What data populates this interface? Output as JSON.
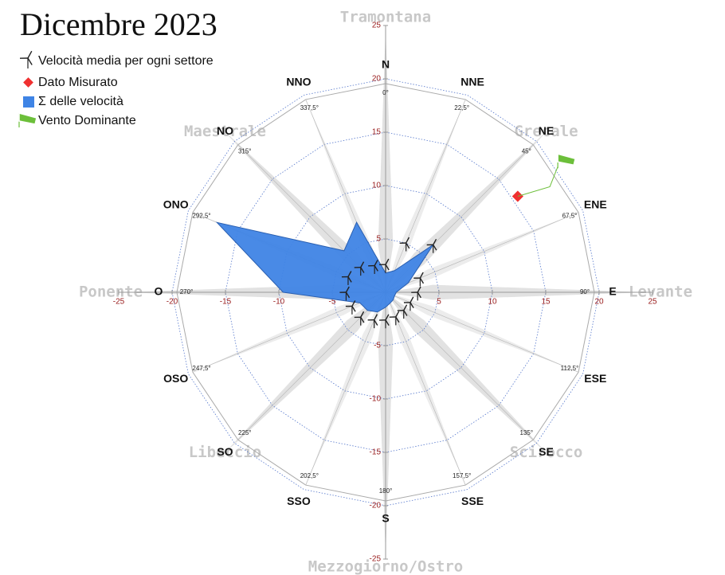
{
  "title": "Dicembre 2023",
  "chart_data": {
    "type": "wind-rose",
    "directions": [
      "N",
      "NNE",
      "NE",
      "ENE",
      "E",
      "ESE",
      "SE",
      "SSE",
      "S",
      "SSO",
      "SO",
      "OSO",
      "O",
      "ONO",
      "NO",
      "NNO"
    ],
    "degrees": [
      "0°",
      "22,5°",
      "45°",
      "67,5°",
      "90°",
      "112,5°",
      "135°",
      "157,5°",
      "180°",
      "202,5°",
      "225°",
      "247,5°",
      "270°",
      "292,5°",
      "315°",
      "337,5°"
    ],
    "wind_names": [
      "Tramontana",
      "Grecale",
      "Levante",
      "Scirocco",
      "Mezzogiorno/Ostro",
      "Libeccio",
      "Ponente",
      "Maestrale"
    ],
    "xlim": [
      -25,
      25
    ],
    "ylim": [
      -25,
      25
    ],
    "xticks": [
      -25,
      -20,
      -15,
      -10,
      -5,
      5,
      10,
      15,
      20,
      25
    ],
    "yticks": [
      25,
      20,
      15,
      10,
      5,
      -5,
      -10,
      -15,
      -20,
      -25
    ],
    "series": [
      {
        "name": "Velocità media per ogni settore",
        "color": "#222222",
        "values": [
          2.6,
          5.0,
          6.3,
          3.5,
          3.0,
          2.5,
          2.4,
          2.5,
          2.6,
          2.8,
          3.3,
          3.4,
          3.7,
          3.8,
          3.3,
          2.7
        ]
      },
      {
        "name": "Dato Misurato",
        "color": "#f03030",
        "angle": 54,
        "values": [
          15.3
        ]
      },
      {
        "name": "Σ delle velocità",
        "color": "#3f84e5",
        "values": [
          1.8,
          2.2,
          6.3,
          2.3,
          1.0,
          0.9,
          1.0,
          1.1,
          1.4,
          2.0,
          2.4,
          2.6,
          9.6,
          17.1,
          5.5,
          7.1
        ]
      },
      {
        "name": "Vento Dominante",
        "color": "#6cbf3a",
        "angle": 54
      }
    ]
  }
}
